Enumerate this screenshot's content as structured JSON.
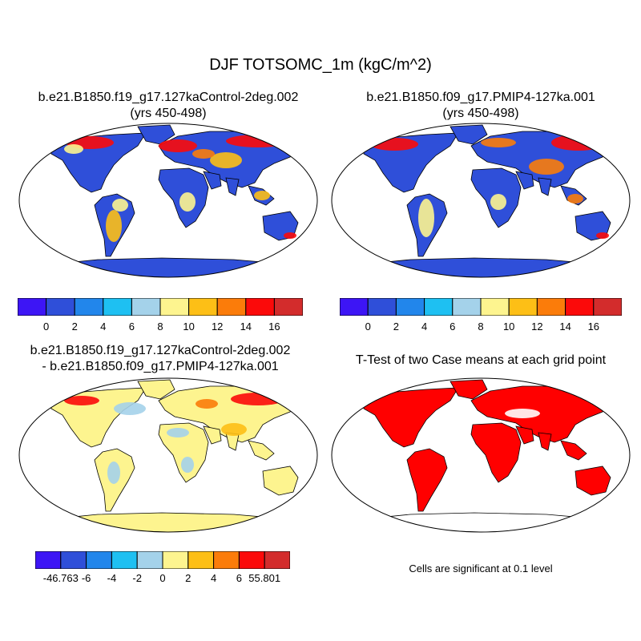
{
  "figure": {
    "title": "DJF TOTSOMC_1m (kgC/m^2)"
  },
  "panels": {
    "top_left": {
      "title_line1": "b.e21.B1850.f19_g17.127kaControl-2deg.002",
      "title_line2": "(yrs 450-498)"
    },
    "top_right": {
      "title_line1": "b.e21.B1850.f09_g17.PMIP4-127ka.001",
      "title_line2": "(yrs 450-498)"
    },
    "bottom_left": {
      "title_line1": "b.e21.B1850.f19_g17.127kaControl-2deg.002",
      "title_line2": "- b.e21.B1850.f09_g17.PMIP4-127ka.001"
    },
    "bottom_right": {
      "title_line1": "T-Test of two Case means at each grid point",
      "note": "Cells are significant at 0.1 level"
    }
  },
  "colorbars": {
    "absolute": {
      "colors": [
        "#3d15f5",
        "#2f4fd9",
        "#2286eb",
        "#1ec0f2",
        "#a4d2ea",
        "#fdf48f",
        "#fdbf16",
        "#fb7c0a",
        "#fb0a0a",
        "#d32c2c"
      ],
      "labels": [
        "0",
        "2",
        "4",
        "6",
        "8",
        "10",
        "12",
        "14",
        "16"
      ]
    },
    "difference": {
      "colors": [
        "#3d15f5",
        "#2f4fd9",
        "#2286eb",
        "#1ec0f2",
        "#a4d2ea",
        "#fdf48f",
        "#fdbf16",
        "#fb7c0a",
        "#fb0a0a",
        "#d32c2c"
      ],
      "labels": [
        "-46.763",
        "-6",
        "-4",
        "-2",
        "0",
        "2",
        "4",
        "6",
        "55.801"
      ]
    }
  },
  "fill_colors": {
    "ocean": "#ffffff",
    "significant": "#ff0000",
    "coastline": "#000000"
  }
}
